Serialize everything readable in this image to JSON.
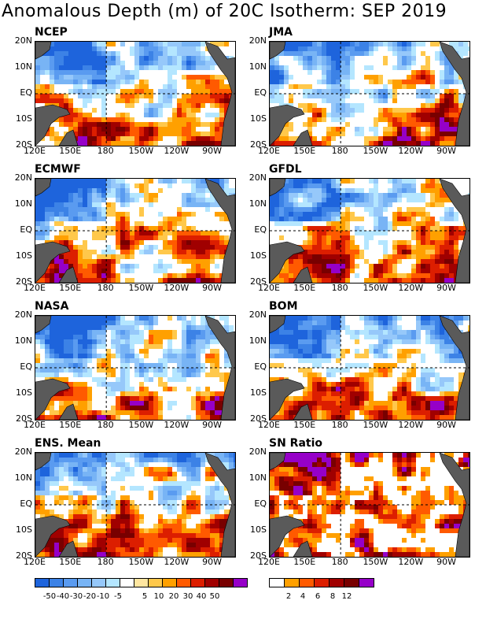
{
  "title": "Anomalous Depth (m) of 20C Isotherm: SEP 2019",
  "lat_labels": [
    "20N",
    "10N",
    "EQ",
    "10S",
    "20S"
  ],
  "lon_labels": [
    "120E",
    "150E",
    "180",
    "150W",
    "120W",
    "90W"
  ],
  "panels": [
    {
      "name": "NCEP"
    },
    {
      "name": "JMA"
    },
    {
      "name": "ECMWF"
    },
    {
      "name": "GFDL"
    },
    {
      "name": "NASA"
    },
    {
      "name": "BOM"
    },
    {
      "name": "ENS. Mean"
    },
    {
      "name": "SN Ratio"
    }
  ],
  "anomaly_colorbar": {
    "labels": [
      "-50",
      "-40",
      "-30",
      "-20",
      "-10",
      "-5",
      "5",
      "10",
      "20",
      "30",
      "40",
      "50"
    ],
    "colors": [
      "#1e64dc",
      "#3c82e6",
      "#5a9bf0",
      "#78b4f5",
      "#96c8fa",
      "#b4e6ff",
      "#ffffff",
      "#ffe6a0",
      "#ffc84b",
      "#ffa000",
      "#ff5a00",
      "#dc1e00",
      "#a00000",
      "#780000",
      "#9600c8"
    ]
  },
  "sn_colorbar": {
    "labels": [
      "2",
      "4",
      "6",
      "8",
      "12"
    ],
    "colors": [
      "#ffffff",
      "#ffa000",
      "#ff5a00",
      "#dc1e00",
      "#a00000",
      "#780000",
      "#9600c8"
    ]
  },
  "land_color": "#5a5a5a"
}
